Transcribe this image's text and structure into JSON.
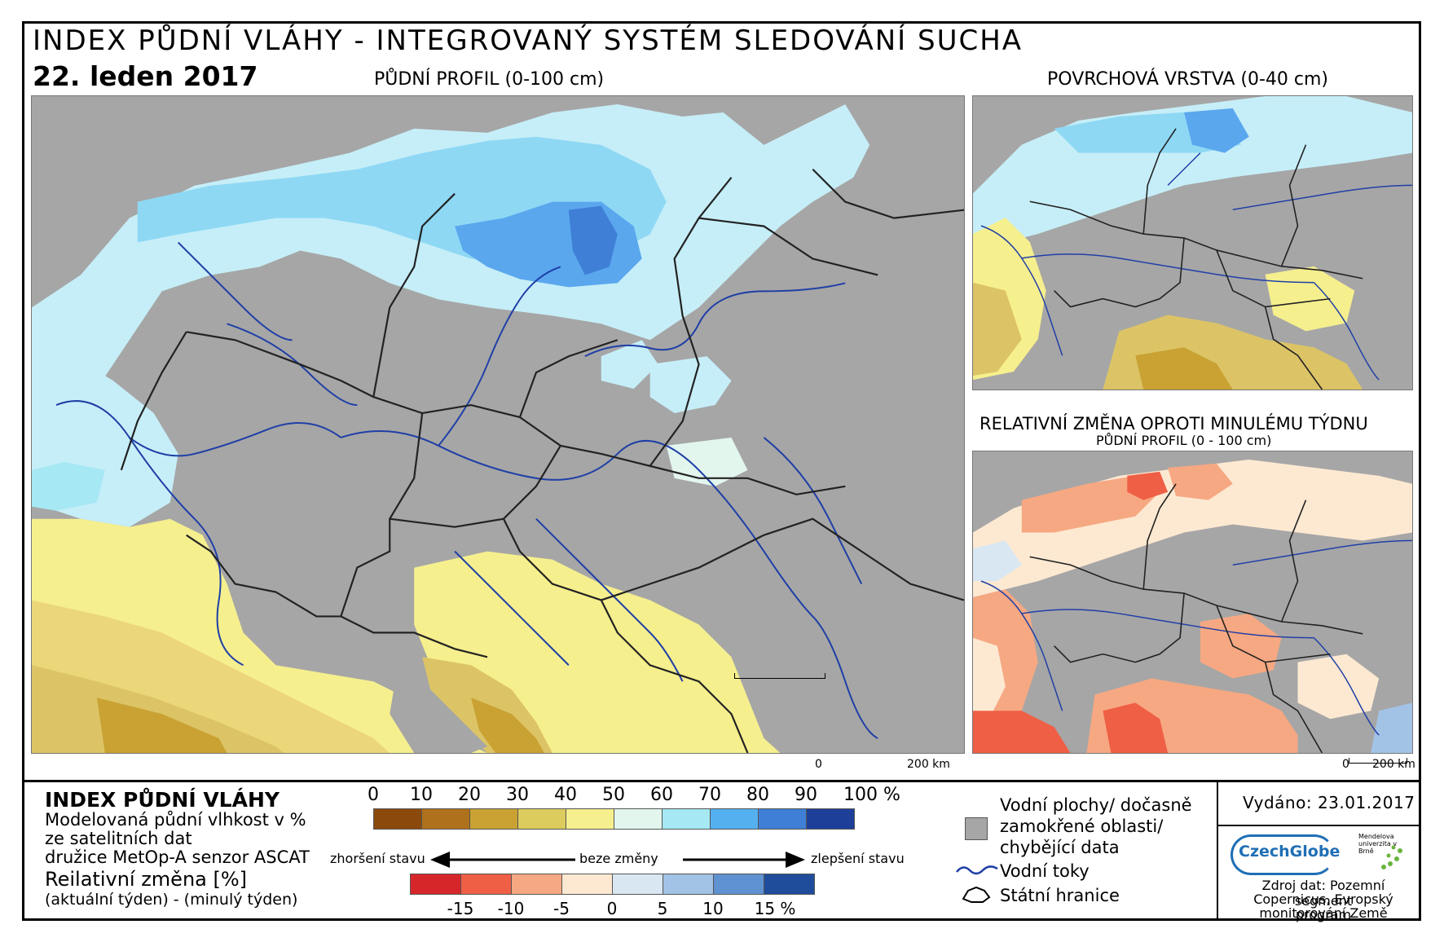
{
  "header": {
    "title": "INDEX PŮDNÍ VLÁHY - INTEGROVANÝ SYSTÉM SLEDOVÁNÍ SUCHA",
    "date": "22. leden 2017"
  },
  "maps": {
    "main_caption": "PŮDNÍ PROFIL (0-100 cm)",
    "surface_caption": "POVRCHOVÁ VRSTVA (0-40 cm)",
    "change_caption": "RELATIVNÍ ZMĚNA OPROTI MINULÉMU TÝDNU",
    "change_subcaption": "PŮDNÍ PROFIL (0 - 100 cm)",
    "scale_zero": "0",
    "scale_label": "200 km"
  },
  "legend": {
    "index_title": "INDEX PŮDNÍ VLÁHY",
    "index_desc_1": "Modelovaná půdní vlhkost v %",
    "index_desc_2": "ze satelitních dat",
    "index_desc_3": "družice MetOp-A senzor ASCAT",
    "change_title": "Reilativní změna [%]",
    "change_desc": "(aktuální týden) - (minulý týden)",
    "index_ticks": [
      "0",
      "10",
      "20",
      "30",
      "40",
      "50",
      "60",
      "70",
      "80",
      "90",
      "100 %"
    ],
    "index_colors": [
      "#8b4a0c",
      "#b0711c",
      "#c9a233",
      "#dccc5e",
      "#f6ef8e",
      "#e2f6ee",
      "#a6e8f3",
      "#55b0f0",
      "#3f7fd6",
      "#1e3f99"
    ],
    "worse_label": "zhoršení stavu",
    "same_label": "beze změny",
    "better_label": "zlepšení stavu",
    "change_ticks": [
      "-15",
      "-10",
      "-5",
      "0",
      "5",
      "10",
      "15 %"
    ],
    "change_colors": [
      "#d7262a",
      "#ef5f45",
      "#f6a882",
      "#fde9d2",
      "#d9e7f3",
      "#a3c3e6",
      "#5f92d1",
      "#1f4d9c"
    ],
    "water_label_1": "Vodní plochy/ dočasně",
    "water_label_2": "zamokřené oblasti/",
    "water_label_3": "chybějící data",
    "rivers_label": "Vodní toky",
    "borders_label": "Státní hranice"
  },
  "info": {
    "issued": "Vydáno: 23.01.2017",
    "logo_czechglobe": "CzechGlobe",
    "logo_mendel": "Mendelova univerzita v Brně",
    "source_1": "Zdroj dat: Pozemní segment",
    "source_2": "Copernicus, Evropský program",
    "source_3": "monitorování Země"
  },
  "colors": {
    "gray": "#a6a6a6",
    "river": "#1f3fa6",
    "border": "#222222"
  }
}
